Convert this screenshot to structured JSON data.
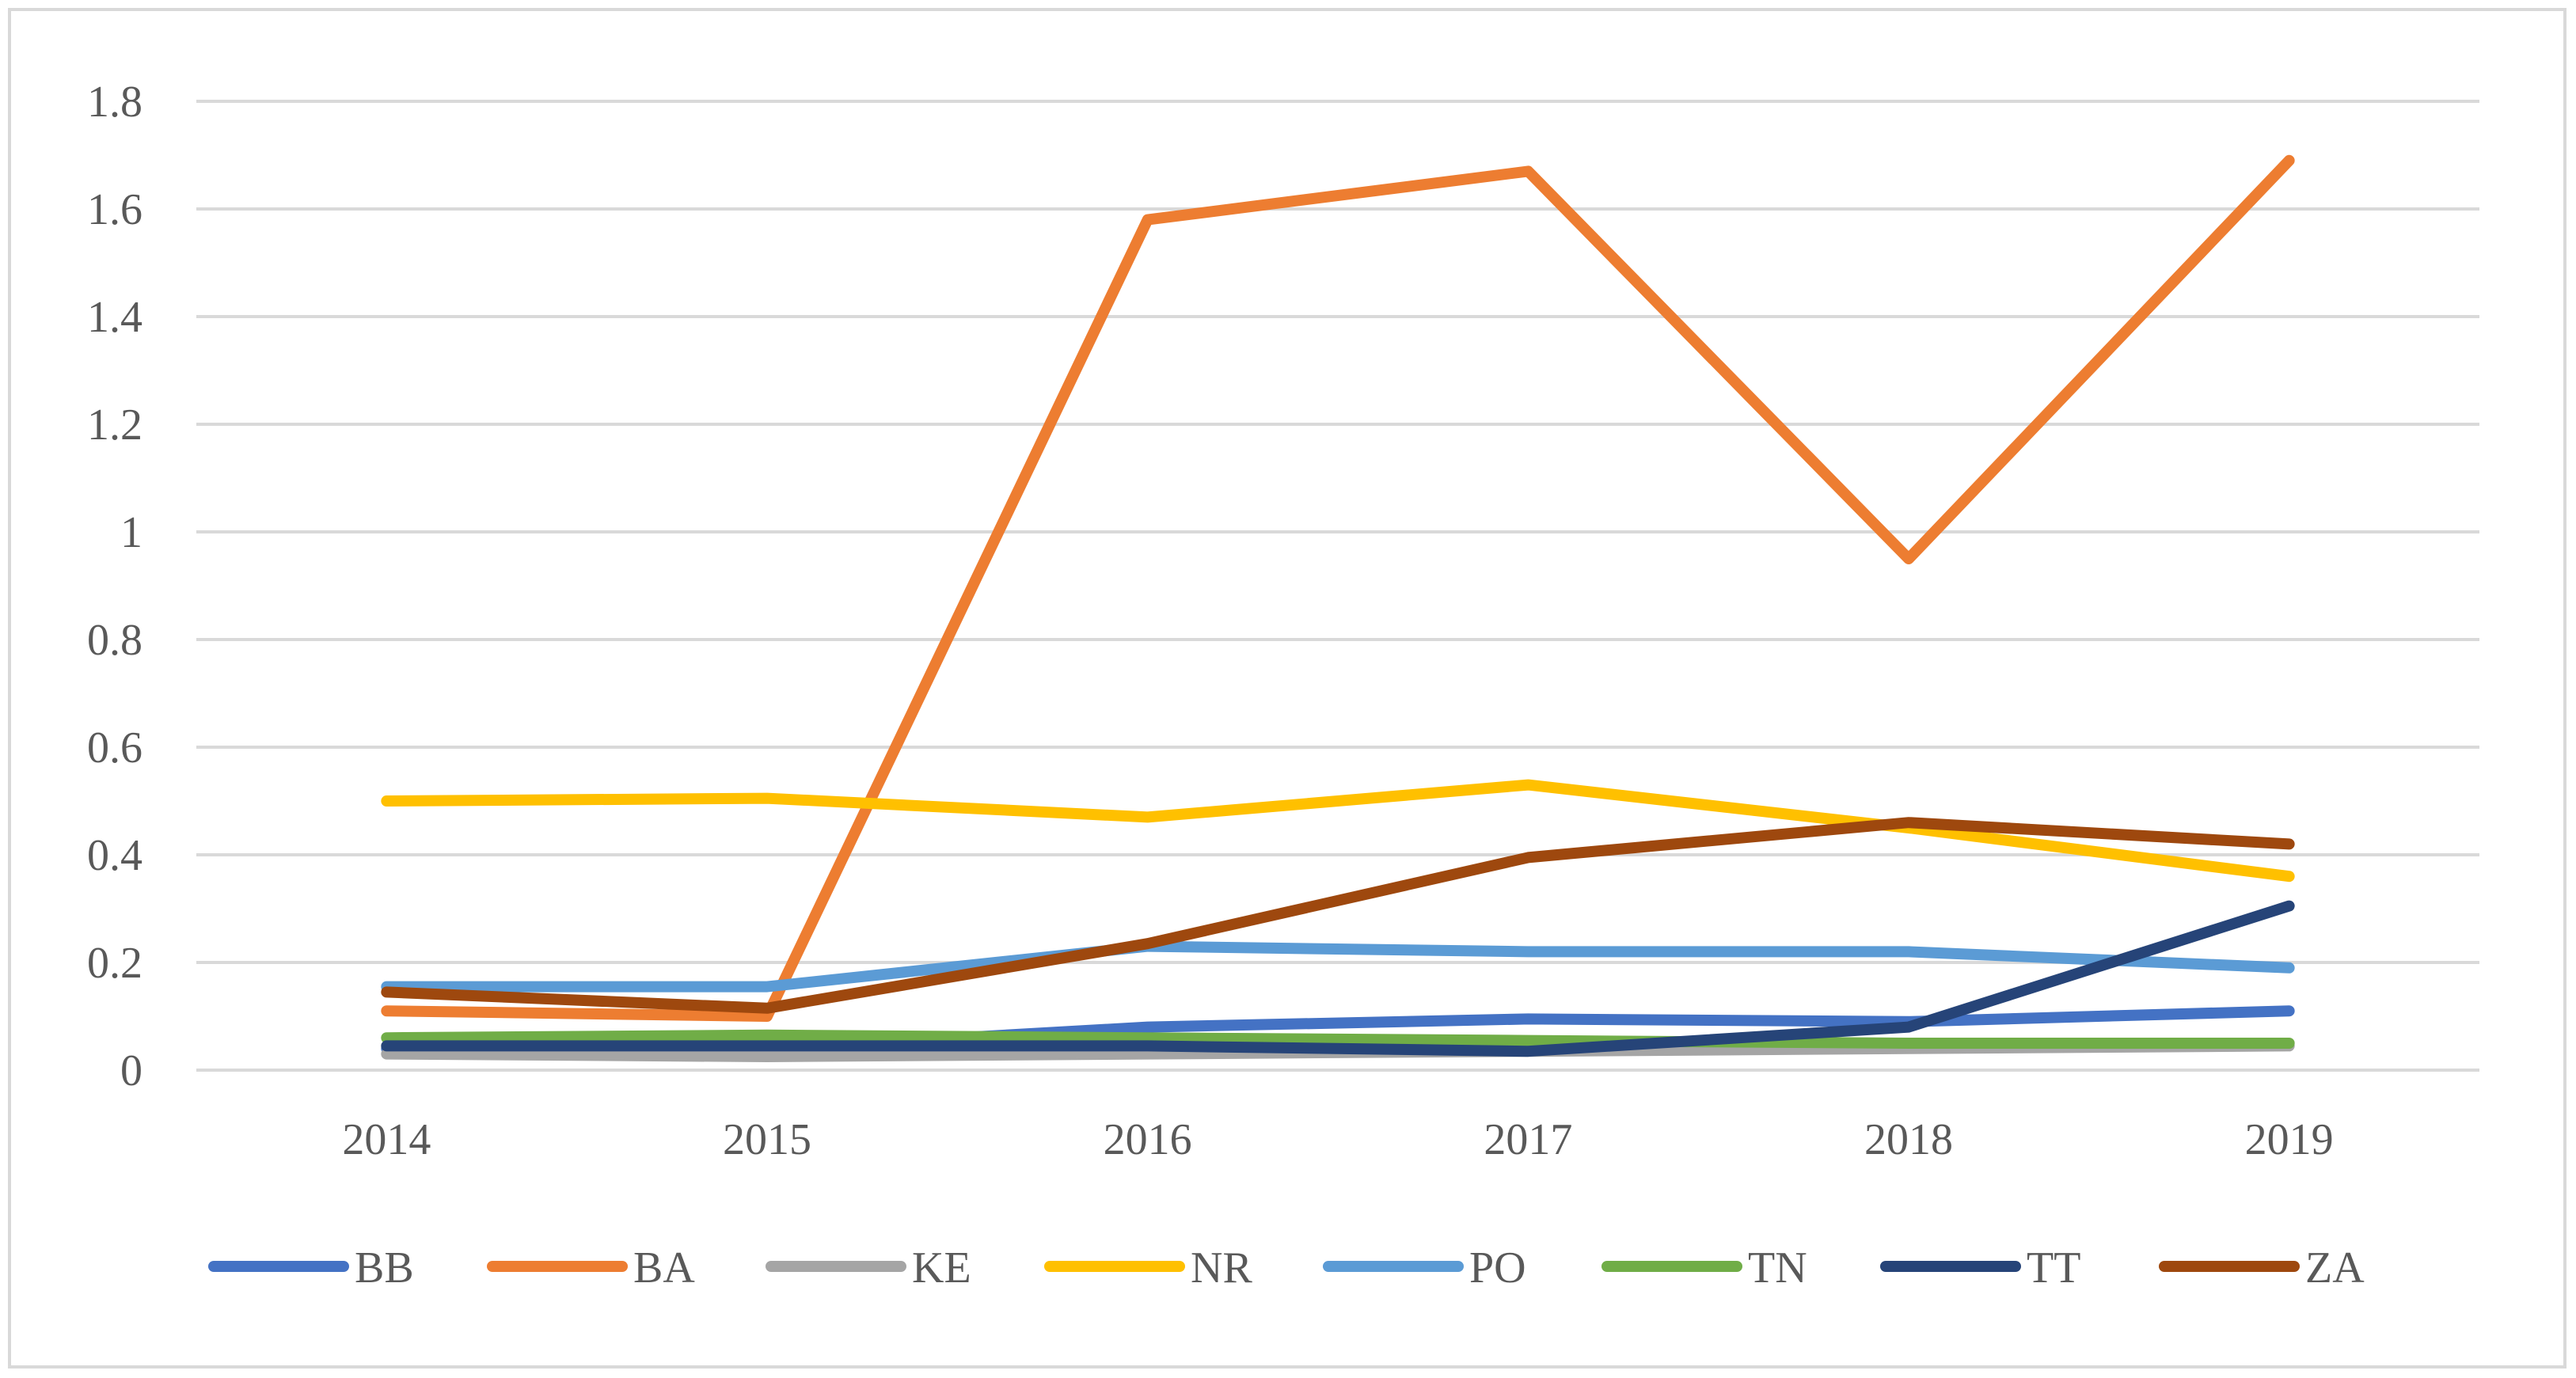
{
  "chart_data": {
    "type": "line",
    "title": "",
    "xlabel": "",
    "ylabel": "",
    "categories": [
      "2014",
      "2015",
      "2016",
      "2017",
      "2018",
      "2019"
    ],
    "ylim": [
      0,
      1.8
    ],
    "yticks": [
      0,
      0.2,
      0.4,
      0.6,
      0.8,
      1,
      1.2,
      1.4,
      1.6,
      1.8
    ],
    "ytick_labels": [
      "0",
      "0.2",
      "0.4",
      "0.6",
      "0.8",
      "1",
      "1.2",
      "1.4",
      "1.6",
      "1.8"
    ],
    "grid": true,
    "legend_position": "bottom",
    "series": [
      {
        "name": "BB",
        "color": "#4472C4",
        "values": [
          0.04,
          0.04,
          0.08,
          0.095,
          0.09,
          0.11
        ]
      },
      {
        "name": "BA",
        "color": "#ED7D31",
        "values": [
          0.11,
          0.1,
          1.58,
          1.67,
          0.95,
          1.69
        ]
      },
      {
        "name": "KE",
        "color": "#A5A5A5",
        "values": [
          0.03,
          0.025,
          0.03,
          0.035,
          0.04,
          0.045
        ]
      },
      {
        "name": "NR",
        "color": "#FFC000",
        "values": [
          0.5,
          0.505,
          0.47,
          0.53,
          0.45,
          0.36
        ]
      },
      {
        "name": "PO",
        "color": "#5B9BD5",
        "values": [
          0.155,
          0.155,
          0.23,
          0.22,
          0.22,
          0.19
        ]
      },
      {
        "name": "TN",
        "color": "#70AD47",
        "values": [
          0.06,
          0.065,
          0.06,
          0.055,
          0.05,
          0.05
        ]
      },
      {
        "name": "TT",
        "color": "#264478",
        "values": [
          0.045,
          0.045,
          0.045,
          0.035,
          0.08,
          0.305
        ]
      },
      {
        "name": "ZA",
        "color": "#9E480E",
        "values": [
          0.145,
          0.115,
          0.235,
          0.395,
          0.46,
          0.42
        ]
      }
    ]
  }
}
